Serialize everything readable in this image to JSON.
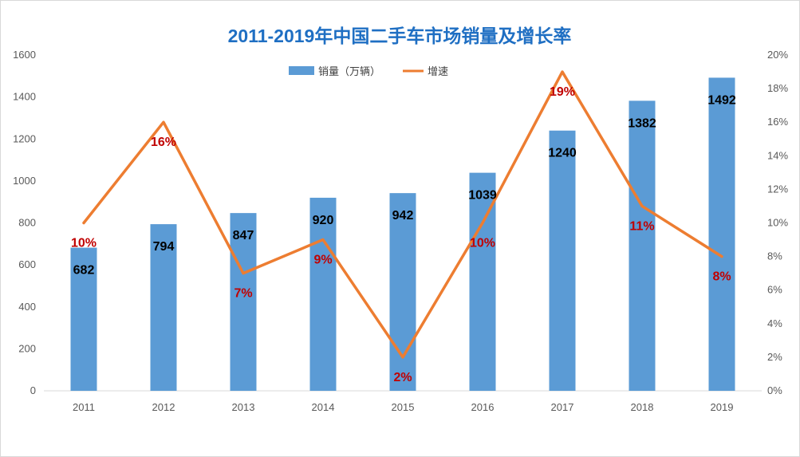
{
  "chart_data": {
    "type": "bar",
    "title": "2011-2019年中国二手车市场销量及增长率",
    "categories": [
      "2011",
      "2012",
      "2013",
      "2014",
      "2015",
      "2016",
      "2017",
      "2018",
      "2019"
    ],
    "series": [
      {
        "name": "销量（万辆）",
        "type": "bar",
        "axis": "left",
        "color": "#5b9bd5",
        "values": [
          682,
          794,
          847,
          920,
          942,
          1039,
          1240,
          1382,
          1492
        ],
        "labels": [
          "682",
          "794",
          "847",
          "920",
          "942",
          "1039",
          "1240",
          "1382",
          "1492"
        ]
      },
      {
        "name": "增速",
        "type": "line",
        "axis": "right",
        "color": "#ed7d31",
        "values": [
          10,
          16,
          7,
          9,
          2,
          10,
          19,
          11,
          8
        ],
        "labels": [
          "10%",
          "16%",
          "7%",
          "9%",
          "2%",
          "10%",
          "19%",
          "11%",
          "8%"
        ]
      }
    ],
    "y_left": {
      "range": [
        0,
        1600
      ],
      "ticks": [
        "0",
        "200",
        "400",
        "600",
        "800",
        "1000",
        "1200",
        "1400",
        "1600"
      ]
    },
    "y_right": {
      "range": [
        0,
        20
      ],
      "ticks": [
        "0%",
        "2%",
        "4%",
        "6%",
        "8%",
        "10%",
        "12%",
        "14%",
        "16%",
        "18%",
        "20%"
      ]
    },
    "grid": false,
    "legend": "top-center",
    "rate_label_color": "#c00000",
    "title_color": "#1f6fc3"
  }
}
